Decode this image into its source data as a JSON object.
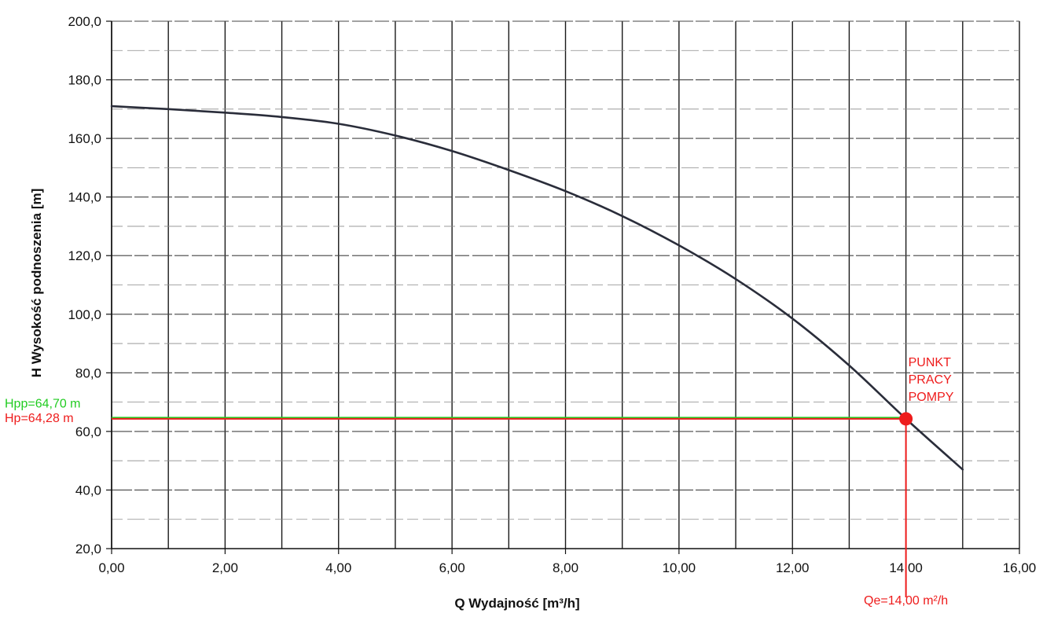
{
  "chart_data": {
    "type": "line",
    "xlabel": "Q Wydajność [m³/h]",
    "ylabel": "H  Wysokość podnoszenia [m]",
    "xlim": [
      0,
      16
    ],
    "ylim": [
      20,
      200
    ],
    "x_major_ticks": [
      0,
      2,
      4,
      6,
      8,
      10,
      12,
      14,
      16
    ],
    "x_minor_grid_step": 1,
    "y_major_ticks": [
      20,
      40,
      60,
      80,
      100,
      120,
      140,
      160,
      180,
      200
    ],
    "y_minor_grid_step": 10,
    "x_tick_labels": [
      "0,00",
      "2,00",
      "4,00",
      "6,00",
      "8,00",
      "10,00",
      "12,00",
      "14,00",
      "16,00"
    ],
    "y_tick_labels": [
      "20,0",
      "40,0",
      "60,0",
      "80,0",
      "100,0",
      "120,0",
      "140,0",
      "160,0",
      "180,0",
      "200,0"
    ],
    "grid": true,
    "series": [
      {
        "color": "#2a2d3a",
        "x": [
          0,
          1,
          2,
          3,
          4,
          5,
          6,
          7,
          8,
          9,
          10,
          11,
          12,
          13,
          14,
          15
        ],
        "y": [
          171,
          170,
          168.8,
          167.3,
          165,
          161,
          155.7,
          149.2,
          142,
          133.5,
          123.5,
          112,
          98.5,
          82.5,
          64.3,
          47
        ]
      }
    ],
    "annotations": {
      "operating_point": {
        "x": 14,
        "y": 64.28,
        "label_lines": [
          "PUNKT",
          "PRACY",
          "POMPY"
        ],
        "color": "#ee1c1c"
      },
      "hpp_line": {
        "y": 64.7,
        "label": "Hpp=64,70 m",
        "color": "#22cc22"
      },
      "hp_line": {
        "y": 64.28,
        "label": "Hp=64,28 m",
        "color": "#ee1c1c"
      },
      "qe_line": {
        "x": 14,
        "label": "Qe=14,00 m²/h",
        "color": "#ee1c1c"
      }
    }
  }
}
